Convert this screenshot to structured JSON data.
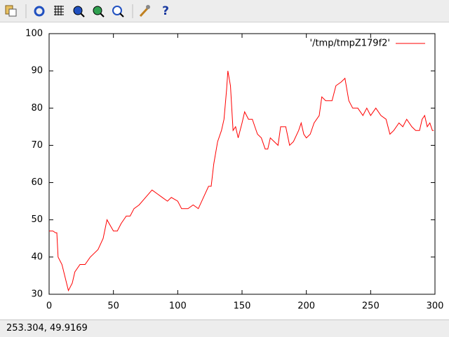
{
  "chart_data": {
    "type": "line",
    "x": [
      0,
      3,
      5,
      6,
      7,
      10,
      15,
      18,
      20,
      24,
      28,
      32,
      38,
      42,
      45,
      50,
      53,
      56,
      60,
      63,
      66,
      70,
      75,
      80,
      84,
      88,
      92,
      95,
      100,
      103,
      108,
      112,
      116,
      120,
      124,
      126,
      128,
      131,
      134,
      136,
      138,
      139,
      141,
      143,
      145,
      147,
      150,
      152,
      155,
      158,
      160,
      162,
      165,
      168,
      170,
      172,
      175,
      178,
      180,
      184,
      187,
      190,
      194,
      196,
      198,
      200,
      203,
      206,
      210,
      212,
      215,
      220,
      223,
      227,
      230,
      233,
      236,
      240,
      244,
      247,
      250,
      254,
      258,
      262,
      265,
      268,
      272,
      275,
      278,
      282,
      285,
      288,
      290,
      292,
      294,
      296,
      298,
      299
    ],
    "series": [
      {
        "name": "'/tmp/tmpZ179f2'",
        "color": "#ff0000",
        "values": [
          47,
          47,
          46.5,
          46.5,
          40,
          38,
          31,
          33,
          36,
          38,
          38,
          40,
          42,
          45,
          50,
          47,
          47,
          49,
          51,
          51,
          53,
          54,
          56,
          58,
          57,
          56,
          55,
          56,
          55,
          53,
          53,
          54,
          53,
          56,
          59,
          59,
          65,
          71,
          74,
          77,
          85,
          90,
          86,
          74,
          75,
          72,
          76,
          79,
          77,
          77,
          75,
          73,
          72,
          69,
          69,
          72,
          71,
          70,
          75,
          75,
          70,
          71,
          74,
          76,
          73,
          72,
          73,
          76,
          78,
          83,
          82,
          82,
          86,
          87,
          88,
          82,
          80,
          80,
          78,
          80,
          78,
          80,
          78,
          77,
          73,
          74,
          76,
          75,
          77,
          75,
          74,
          74,
          77,
          78,
          75,
          76,
          74,
          74
        ]
      }
    ],
    "xlim": [
      0,
      300
    ],
    "xticks": [
      0,
      50,
      100,
      150,
      200,
      250,
      300
    ],
    "ylim": [
      30,
      100
    ],
    "yticks": [
      30,
      40,
      50,
      60,
      70,
      80,
      90,
      100
    ],
    "grid": false,
    "legend": "top-right"
  },
  "status_bar": {
    "text": "253.304,  49.9169"
  }
}
